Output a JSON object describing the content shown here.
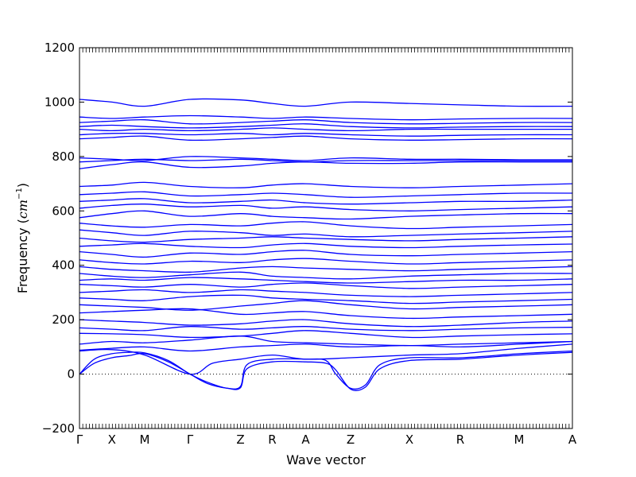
{
  "chart_data": {
    "type": "line",
    "title": "",
    "xlabel": "Wave vector",
    "ylabel_text": "Frequency (",
    "ylabel_unit_base": "cm",
    "ylabel_unit_exp": "−1",
    "ylabel_close": ")",
    "ylim": [
      -200,
      1200
    ],
    "yticks": [
      -200,
      0,
      200,
      400,
      600,
      800,
      1000,
      1200
    ],
    "high_symmetry_points": [
      {
        "label": "Γ",
        "x": 0
      },
      {
        "label": "X",
        "x": 0.0658
      },
      {
        "label": "M",
        "x": 0.1323
      },
      {
        "label": "Γ",
        "x": 0.2242
      },
      {
        "label": "Z",
        "x": 0.3266
      },
      {
        "label": "R",
        "x": 0.3911
      },
      {
        "label": "A",
        "x": 0.4589
      },
      {
        "label": "Z",
        "x": 0.55
      },
      {
        "label": "X",
        "x": 0.6694
      },
      {
        "label": "R",
        "x": 0.7726
      },
      {
        "label": "M",
        "x": 0.8919
      },
      {
        "label": "A",
        "x": 1.0
      }
    ],
    "zero_line": true,
    "line_color": "#0000ff",
    "low_branches": [
      {
        "x": [
          0,
          0.03,
          0.0658,
          0.1,
          0.1323,
          0.18,
          0.2242,
          0.26,
          0.3,
          0.3266,
          0.34,
          0.3911,
          0.4589,
          0.5,
          0.52,
          0.55,
          0.58,
          0.61,
          0.6694,
          0.7726,
          0.8919,
          1.0
        ],
        "y": [
          0,
          40,
          60,
          68,
          75,
          45,
          0,
          -35,
          -52,
          -50,
          20,
          45,
          45,
          40,
          15,
          -55,
          -48,
          20,
          50,
          55,
          70,
          80
        ]
      },
      {
        "x": [
          0,
          0.03,
          0.0658,
          0.1,
          0.1323,
          0.18,
          0.2242,
          0.26,
          0.3,
          0.3266,
          0.34,
          0.3911,
          0.4589,
          0.5,
          0.52,
          0.55,
          0.58,
          0.61,
          0.6694,
          0.7726,
          0.8919,
          1.0
        ],
        "y": [
          0,
          55,
          75,
          80,
          78,
          50,
          0,
          -30,
          -52,
          -45,
          35,
          55,
          55,
          50,
          0,
          -52,
          -40,
          35,
          60,
          60,
          75,
          85
        ]
      },
      {
        "x": [
          0,
          0.0658,
          0.1323,
          0.2242,
          0.27,
          0.3266,
          0.3911,
          0.4589,
          0.55,
          0.6694,
          0.7726,
          0.8919,
          1.0
        ],
        "y": [
          85,
          90,
          70,
          0,
          40,
          55,
          70,
          55,
          60,
          70,
          75,
          95,
          110
        ]
      },
      {
        "x": [
          0,
          0.0658,
          0.1323,
          0.2242,
          0.3266,
          0.3911,
          0.4589,
          0.55,
          0.6694,
          0.7726,
          0.8919,
          1.0
        ],
        "y": [
          88,
          95,
          100,
          85,
          100,
          105,
          110,
          100,
          105,
          100,
          110,
          120
        ]
      }
    ],
    "flat_bands": [
      {
        "y": [
          110,
          120,
          115,
          125,
          140,
          120,
          115,
          110,
          105,
          110,
          115,
          120
        ]
      },
      {
        "y": [
          150,
          148,
          145,
          135,
          140,
          150,
          160,
          150,
          135,
          140,
          145,
          148
        ]
      },
      {
        "y": [
          170,
          165,
          160,
          175,
          165,
          170,
          175,
          165,
          160,
          165,
          170,
          172
        ]
      },
      {
        "y": [
          200,
          195,
          190,
          180,
          185,
          195,
          200,
          185,
          175,
          180,
          190,
          195
        ]
      },
      {
        "y": [
          225,
          230,
          235,
          240,
          220,
          225,
          230,
          215,
          205,
          210,
          215,
          220
        ]
      },
      {
        "y": [
          255,
          250,
          245,
          235,
          250,
          260,
          270,
          255,
          240,
          245,
          250,
          255
        ]
      },
      {
        "y": [
          280,
          275,
          270,
          285,
          290,
          280,
          275,
          270,
          260,
          265,
          270,
          275
        ]
      },
      {
        "y": [
          300,
          305,
          310,
          300,
          310,
          305,
          300,
          290,
          285,
          290,
          295,
          300
        ]
      },
      {
        "y": [
          330,
          325,
          320,
          330,
          320,
          330,
          335,
          325,
          315,
          320,
          325,
          330
        ]
      },
      {
        "y": [
          345,
          350,
          345,
          355,
          350,
          345,
          340,
          335,
          340,
          345,
          345,
          350
        ]
      },
      {
        "y": [
          370,
          360,
          355,
          365,
          375,
          360,
          355,
          350,
          360,
          365,
          370,
          370
        ]
      },
      {
        "y": [
          395,
          385,
          380,
          375,
          390,
          395,
          390,
          385,
          380,
          385,
          390,
          395
        ]
      },
      {
        "y": [
          420,
          410,
          405,
          415,
          410,
          420,
          425,
          415,
          405,
          410,
          415,
          420
        ]
      },
      {
        "y": [
          450,
          440,
          430,
          445,
          440,
          450,
          455,
          440,
          435,
          440,
          445,
          450
        ]
      },
      {
        "y": [
          470,
          475,
          480,
          470,
          465,
          475,
          480,
          470,
          465,
          470,
          475,
          478
        ]
      },
      {
        "y": [
          500,
          490,
          485,
          495,
          500,
          505,
          500,
          495,
          490,
          495,
          500,
          505
        ]
      },
      {
        "y": [
          530,
          520,
          510,
          525,
          520,
          510,
          515,
          505,
          510,
          515,
          520,
          525
        ]
      },
      {
        "y": [
          555,
          545,
          540,
          550,
          545,
          555,
          560,
          545,
          535,
          540,
          545,
          550
        ]
      },
      {
        "y": [
          575,
          590,
          600,
          580,
          590,
          580,
          575,
          570,
          580,
          585,
          590,
          590
        ]
      },
      {
        "y": [
          610,
          620,
          625,
          615,
          620,
          610,
          615,
          605,
          600,
          605,
          610,
          615
        ]
      },
      {
        "y": [
          635,
          640,
          645,
          630,
          635,
          640,
          630,
          625,
          630,
          635,
          635,
          640
        ]
      },
      {
        "y": [
          660,
          665,
          670,
          655,
          660,
          665,
          660,
          650,
          655,
          660,
          665,
          665
        ]
      },
      {
        "y": [
          690,
          695,
          705,
          690,
          685,
          695,
          700,
          690,
          685,
          690,
          695,
          700
        ]
      },
      {
        "y": [
          755,
          770,
          780,
          760,
          765,
          775,
          780,
          775,
          775,
          780,
          780,
          780
        ]
      },
      {
        "y": [
          780,
          785,
          790,
          785,
          790,
          785,
          780,
          785,
          785,
          785,
          785,
          785
        ]
      },
      {
        "y": [
          795,
          790,
          785,
          800,
          795,
          790,
          785,
          795,
          790,
          790,
          788,
          788
        ]
      },
      {
        "y": [
          865,
          870,
          875,
          860,
          865,
          870,
          875,
          865,
          860,
          862,
          865,
          865
        ]
      },
      {
        "y": [
          880,
          885,
          885,
          880,
          885,
          880,
          885,
          880,
          875,
          878,
          880,
          880
        ]
      },
      {
        "y": [
          900,
          895,
          900,
          895,
          900,
          905,
          900,
          895,
          900,
          900,
          900,
          900
        ]
      },
      {
        "y": [
          910,
          915,
          910,
          905,
          910,
          915,
          920,
          910,
          905,
          908,
          910,
          910
        ]
      },
      {
        "y": [
          925,
          930,
          935,
          920,
          925,
          930,
          935,
          925,
          920,
          922,
          925,
          925
        ]
      },
      {
        "y": [
          945,
          940,
          945,
          950,
          945,
          940,
          945,
          940,
          935,
          938,
          940,
          940
        ]
      },
      {
        "y": [
          1010,
          1000,
          985,
          1010,
          1008,
          995,
          985,
          1000,
          995,
          990,
          985,
          985
        ]
      }
    ]
  }
}
